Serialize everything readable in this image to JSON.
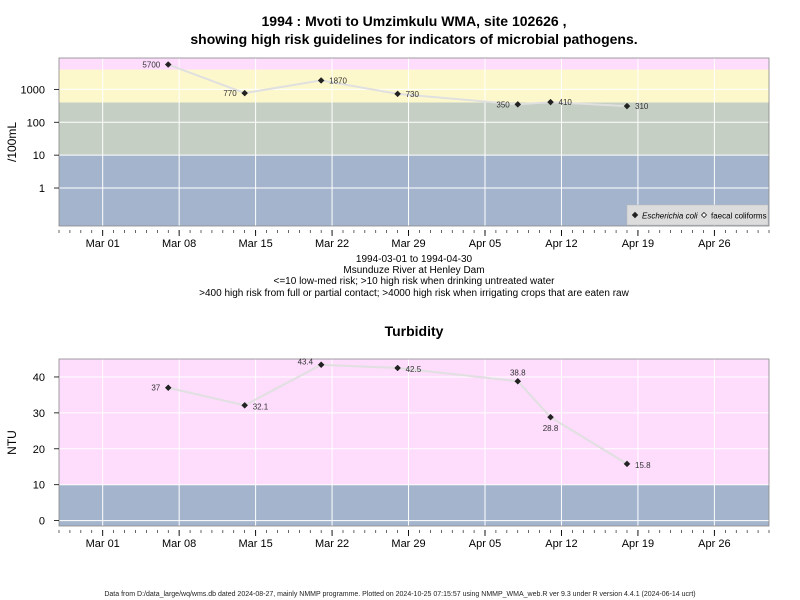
{
  "footer": "Data from D:/data_large/wq/wms.db dated 2024-08-27, mainly NMMP programme. Plotted on 2024-10-25 07:15:57 using NMMP_WMA_web.R ver 9.3 under R version 4.4.1 (2024-06-14 ucrt)",
  "chart_data": [
    {
      "type": "scatter",
      "title": [
        "1994 : Mvoti to Umzimkulu WMA, site 102626 ,",
        "showing high risk guidelines for indicators of microbial pathogens."
      ],
      "subtitle": [
        "1994-03-01 to 1994-04-30",
        "Msunduze River at Henley Dam",
        "<=10 low-med risk; >10 high risk when drinking untreated water",
        ">400 high risk from full or partial contact; >4000 high risk when irrigating crops that are eaten raw"
      ],
      "ylabel": "/100mL",
      "yscale": "log10",
      "ylim": [
        0.07,
        9000
      ],
      "yticks": [
        1,
        10,
        100,
        1000
      ],
      "ytick_labels": [
        "1",
        "10",
        "100",
        "1000"
      ],
      "xlim": [
        "1994-02-25",
        "1994-05-01"
      ],
      "xticks": [
        "1994-03-01",
        "1994-03-08",
        "1994-03-15",
        "1994-03-22",
        "1994-03-29",
        "1994-04-05",
        "1994-04-12",
        "1994-04-19",
        "1994-04-26"
      ],
      "xtick_labels": [
        "Mar 01",
        "Mar 08",
        "Mar 15",
        "Mar 22",
        "Mar 29",
        "Apr 05",
        "Apr 12",
        "Apr 19",
        "Apr 26"
      ],
      "bands": [
        {
          "from": 0.07,
          "to": 10,
          "color": "#a3b4cc"
        },
        {
          "from": 10,
          "to": 400,
          "color": "#c5cfc3"
        },
        {
          "from": 400,
          "to": 4000,
          "color": "#fdf8cb"
        },
        {
          "from": 4000,
          "to": 9000,
          "color": "#fddcfc"
        }
      ],
      "line_color": "#e0e0e0",
      "series": [
        {
          "name": "Escherichia coli",
          "marker": "filled-diamond",
          "x": [
            "1994-03-07",
            "1994-03-14",
            "1994-03-21",
            "1994-03-28",
            "1994-04-08",
            "1994-04-11",
            "1994-04-18"
          ],
          "y": [
            5700,
            770,
            1870,
            730,
            350,
            410,
            310
          ],
          "labels": [
            "5700",
            "770",
            "1870",
            "730",
            "350",
            "410",
            "310"
          ]
        },
        {
          "name": "faecal coliforms",
          "marker": "open-diamond",
          "x": [],
          "y": [],
          "labels": []
        }
      ],
      "legend_position": "bottom-right"
    },
    {
      "type": "scatter",
      "title": "Turbidity",
      "ylabel": "NTU",
      "ylim": [
        -1.5,
        45
      ],
      "yticks": [
        0,
        10,
        20,
        30,
        40
      ],
      "ytick_labels": [
        "0",
        "10",
        "20",
        "30",
        "40"
      ],
      "xlim": [
        "1994-02-25",
        "1994-05-01"
      ],
      "xticks": [
        "1994-03-01",
        "1994-03-08",
        "1994-03-15",
        "1994-03-22",
        "1994-03-29",
        "1994-04-05",
        "1994-04-12",
        "1994-04-19",
        "1994-04-26"
      ],
      "xtick_labels": [
        "Mar 01",
        "Mar 08",
        "Mar 15",
        "Mar 22",
        "Mar 29",
        "Apr 05",
        "Apr 12",
        "Apr 19",
        "Apr 26"
      ],
      "bands": [
        {
          "from": -1.5,
          "to": 10,
          "color": "#a3b4cc"
        },
        {
          "from": 10,
          "to": 45,
          "color": "#fddcfc"
        }
      ],
      "line_color": "#e0e0e0",
      "series": [
        {
          "name": "",
          "marker": "filled-diamond",
          "x": [
            "1994-03-07",
            "1994-03-14",
            "1994-03-21",
            "1994-03-28",
            "1994-04-08",
            "1994-04-11",
            "1994-04-18"
          ],
          "y": [
            37,
            32.1,
            43.4,
            42.5,
            38.8,
            28.8,
            15.8
          ],
          "labels": [
            "37",
            "32.1",
            "43.4",
            "42.5",
            "38.8",
            "28.8",
            "15.8"
          ]
        }
      ]
    }
  ]
}
